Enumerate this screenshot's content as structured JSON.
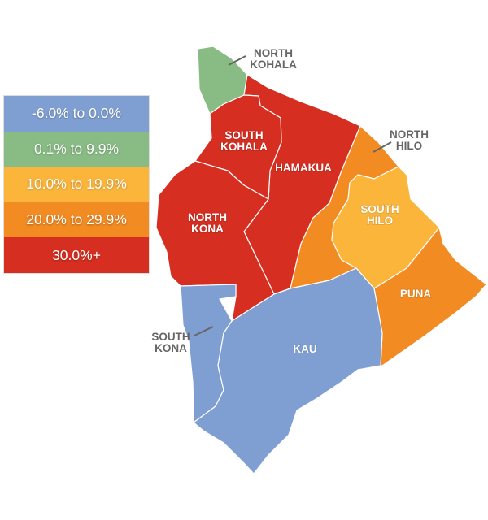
{
  "legend": [
    {
      "label": "-6.0% to 0.0%",
      "color": "#7f9fd3"
    },
    {
      "label": "0.1% to 9.9%",
      "color": "#89bb85"
    },
    {
      "label": "10.0% to 19.9%",
      "color": "#fbb53b"
    },
    {
      "label": "20.0% to 29.9%",
      "color": "#f28b22"
    },
    {
      "label": "30.0%+",
      "color": "#d62e20"
    }
  ],
  "districts": {
    "north_kohala": {
      "line1": "NORTH",
      "line2": "KOHALA",
      "bin": 1
    },
    "south_kohala": {
      "line1": "SOUTH",
      "line2": "KOHALA",
      "bin": 4
    },
    "hamakua": {
      "line1": "HAMAKUA",
      "bin": 4
    },
    "north_kona": {
      "line1": "NORTH",
      "line2": "KONA",
      "bin": 4
    },
    "north_hilo": {
      "line1": "NORTH",
      "line2": "HILO",
      "bin": 3
    },
    "south_hilo": {
      "line1": "SOUTH",
      "line2": "HILO",
      "bin": 2
    },
    "puna": {
      "line1": "PUNA",
      "bin": 3
    },
    "south_kona": {
      "line1": "SOUTH",
      "line2": "KONA",
      "bin": 0
    },
    "kau": {
      "line1": "KAU",
      "bin": 0
    }
  }
}
